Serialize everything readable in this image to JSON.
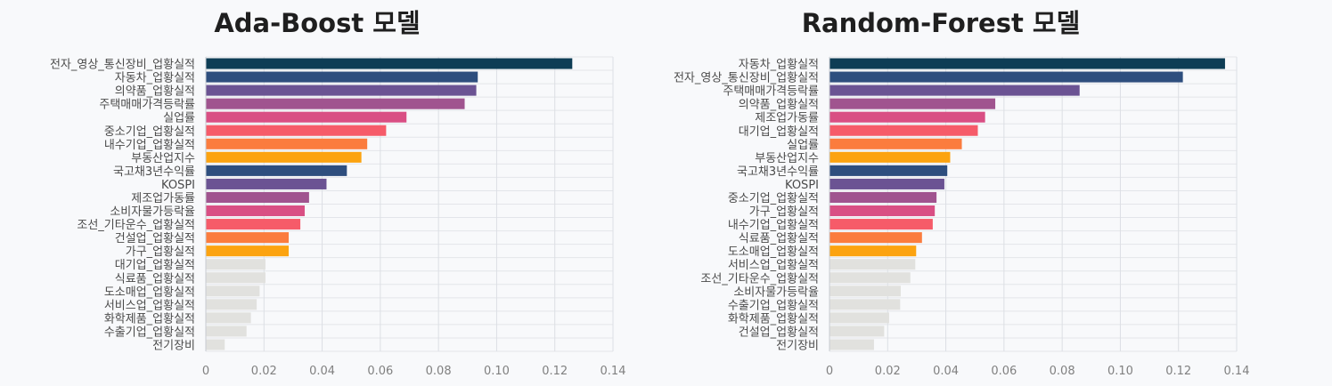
{
  "chart_data": [
    {
      "type": "bar",
      "orientation": "horizontal",
      "title": "Ada-Boost 모델",
      "xlabel": "",
      "ylabel": "",
      "xlim": [
        0,
        0.14
      ],
      "ticks": [
        "0",
        "0.02",
        "0.04",
        "0.06",
        "0.08",
        "0.10",
        "0.12",
        "0.14"
      ],
      "grid": true,
      "categories": [
        "전자_영상_통신장비_업황실적",
        "자동차_업황실적",
        "의약품_업황실적",
        "주택매매가격등락률",
        "실업률",
        "중소기업_업황실적",
        "내수기업_업황실적",
        "부동산업지수",
        "국고채3년수익률",
        "KOSPI",
        "제조업가동률",
        "소비자물가등락율",
        "조선_기타운수_업황실적",
        "건설업_업황실적",
        "가구_업황실적",
        "대기업_업황실적",
        "식료품_업황실적",
        "도소매업_업황실적",
        "서비스업_업황실적",
        "화학제품_업황실적",
        "수출기업_업황실적",
        "전기장비"
      ],
      "values": [
        0.126,
        0.0935,
        0.093,
        0.089,
        0.069,
        0.062,
        0.0555,
        0.0535,
        0.0485,
        0.0415,
        0.0355,
        0.034,
        0.0325,
        0.0285,
        0.0285,
        0.0205,
        0.0205,
        0.0185,
        0.0175,
        0.0155,
        0.014,
        0.0065
      ],
      "colors": [
        "#0e3d55",
        "#2e4e7e",
        "#6b5393",
        "#a0548f",
        "#d94f84",
        "#f65b69",
        "#fb7c3e",
        "#fca310",
        "#2e4e7e",
        "#6b5393",
        "#a0548f",
        "#d94f84",
        "#f65b69",
        "#fb7c3e",
        "#fca310",
        "#e1e1de",
        "#e1e1de",
        "#e1e1de",
        "#e1e1de",
        "#e1e1de",
        "#e1e1de",
        "#e1e1de"
      ]
    },
    {
      "type": "bar",
      "orientation": "horizontal",
      "title": "Random-Forest 모델",
      "xlabel": "",
      "ylabel": "",
      "xlim": [
        0,
        0.14
      ],
      "ticks": [
        "0",
        "0.02",
        "0.04",
        "0.06",
        "0.08",
        "0.10",
        "0.12",
        "0.14"
      ],
      "grid": true,
      "categories": [
        "자동차_업황실적",
        "전자_영상_통신장비_업황실적",
        "주택매매가격등락률",
        "의약품_업황실적",
        "제조업가동률",
        "대기업_업황실적",
        "실업률",
        "부동산업지수",
        "국고채3년수익률",
        "KOSPI",
        "중소기업_업황실적",
        "가구_업황실적",
        "내수기업_업황실적",
        "식료품_업황실적",
        "도소매업_업황실적",
        "서비스업_업황실적",
        "조선_기타운수_업황실적",
        "소비자물가등락율",
        "수출기업_업황실적",
        "화학제품_업황실적",
        "건설업_업황실적",
        "전기장비"
      ],
      "values": [
        0.136,
        0.1215,
        0.086,
        0.057,
        0.0535,
        0.051,
        0.0455,
        0.0415,
        0.0405,
        0.0395,
        0.0368,
        0.0362,
        0.0355,
        0.0318,
        0.0298,
        0.0295,
        0.0278,
        0.0245,
        0.0243,
        0.0205,
        0.0188,
        0.0153
      ],
      "colors": [
        "#0e3d55",
        "#2e4e7e",
        "#6b5393",
        "#a0548f",
        "#d94f84",
        "#f65b69",
        "#fb7c3e",
        "#fca310",
        "#2e4e7e",
        "#6b5393",
        "#a0548f",
        "#d94f84",
        "#f65b69",
        "#fb7c3e",
        "#fca310",
        "#e1e1de",
        "#e1e1de",
        "#e1e1de",
        "#e1e1de",
        "#e1e1de",
        "#e1e1de",
        "#e1e1de"
      ]
    }
  ]
}
